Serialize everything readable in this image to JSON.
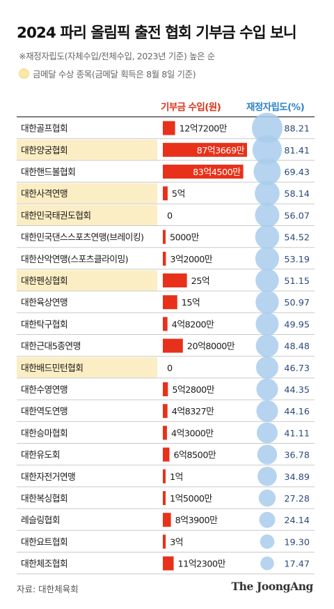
{
  "header": {
    "title": "2024 파리 올림픽 출전 협회 기부금 수입 보니",
    "note": "※재정자립도(자체수입/전체수입, 2023년 기준) 높은 순",
    "legend_label": "금메달 수상 종목(금메달 획득은 8월 8일 기준)"
  },
  "colors": {
    "bar": "#e8311a",
    "bubble": "#a9cdec",
    "highlight": "#fbeec4",
    "ratio_text": "#2a4a7a",
    "bar_header": "#d9331a",
    "ratio_header": "#2f83c7"
  },
  "chart_data": {
    "type": "bar",
    "bar_header": "기부금 수입(원)",
    "ratio_header": "재정자립도(%)",
    "unit_bar": "원",
    "unit_ratio": "%",
    "rows": [
      {
        "name": "대한골프협회",
        "donation": 1272000000,
        "label": "12억7200만",
        "ratio": 88.21,
        "ratio_label": "88.21",
        "gold": false
      },
      {
        "name": "대한양궁협회",
        "donation": 8736690000,
        "label": "87억3669만",
        "ratio": 81.41,
        "ratio_label": "81.41",
        "gold": true
      },
      {
        "name": "대한핸드볼협회",
        "donation": 8345000000,
        "label": "83억4500만",
        "ratio": 69.43,
        "ratio_label": "69.43",
        "gold": false
      },
      {
        "name": "대한사격연맹",
        "donation": 500000000,
        "label": "5억",
        "ratio": 58.14,
        "ratio_label": "58.14",
        "gold": true
      },
      {
        "name": "대한민국태권도협회",
        "donation": 0,
        "label": "0",
        "ratio": 56.07,
        "ratio_label": "56.07",
        "gold": true
      },
      {
        "name": "대한민국댄스스포츠연맹(브레이킹)",
        "donation": 50000000,
        "label": "5000만",
        "ratio": 54.52,
        "ratio_label": "54.52",
        "gold": false
      },
      {
        "name": "대한산악연맹(스포츠클라이밍)",
        "donation": 320000000,
        "label": "3억2000만",
        "ratio": 53.19,
        "ratio_label": "53.19",
        "gold": false
      },
      {
        "name": "대한펜싱협회",
        "donation": 2500000000,
        "label": "25억",
        "ratio": 51.15,
        "ratio_label": "51.15",
        "gold": true
      },
      {
        "name": "대한육상연맹",
        "donation": 1500000000,
        "label": "15억",
        "ratio": 50.97,
        "ratio_label": "50.97",
        "gold": false
      },
      {
        "name": "대한탁구협회",
        "donation": 482000000,
        "label": "4억8200만",
        "ratio": 49.95,
        "ratio_label": "49.95",
        "gold": false
      },
      {
        "name": "대한근대5종연맹",
        "donation": 2080000000,
        "label": "20억8000만",
        "ratio": 48.48,
        "ratio_label": "48.48",
        "gold": false
      },
      {
        "name": "대한배드민턴협회",
        "donation": 0,
        "label": "0",
        "ratio": 46.73,
        "ratio_label": "46.73",
        "gold": true
      },
      {
        "name": "대한수영연맹",
        "donation": 528000000,
        "label": "5억2800만",
        "ratio": 44.35,
        "ratio_label": "44.35",
        "gold": false
      },
      {
        "name": "대한역도연맹",
        "donation": 483270000,
        "label": "4억8327만",
        "ratio": 44.16,
        "ratio_label": "44.16",
        "gold": false
      },
      {
        "name": "대한승마협회",
        "donation": 430000000,
        "label": "4억3000만",
        "ratio": 41.11,
        "ratio_label": "41.11",
        "gold": false
      },
      {
        "name": "대한유도회",
        "donation": 685000000,
        "label": "6억8500만",
        "ratio": 36.78,
        "ratio_label": "36.78",
        "gold": false
      },
      {
        "name": "대한자전거연맹",
        "donation": 100000000,
        "label": "1억",
        "ratio": 34.89,
        "ratio_label": "34.89",
        "gold": false
      },
      {
        "name": "대한복싱협회",
        "donation": 150000000,
        "label": "1억5000만",
        "ratio": 27.28,
        "ratio_label": "27.28",
        "gold": false
      },
      {
        "name": "레슬링협회",
        "donation": 839000000,
        "label": "8억3900만",
        "ratio": 24.14,
        "ratio_label": "24.14",
        "gold": false
      },
      {
        "name": "대한요트협회",
        "donation": 300000000,
        "label": "3억",
        "ratio": 19.3,
        "ratio_label": "19.30",
        "gold": false
      },
      {
        "name": "대한체조협회",
        "donation": 1123000000,
        "label": "11억2300만",
        "ratio": 17.47,
        "ratio_label": "17.47",
        "gold": false
      }
    ]
  },
  "footer": {
    "source": "자료: 대한체육회",
    "brand": "The JoongAng"
  }
}
